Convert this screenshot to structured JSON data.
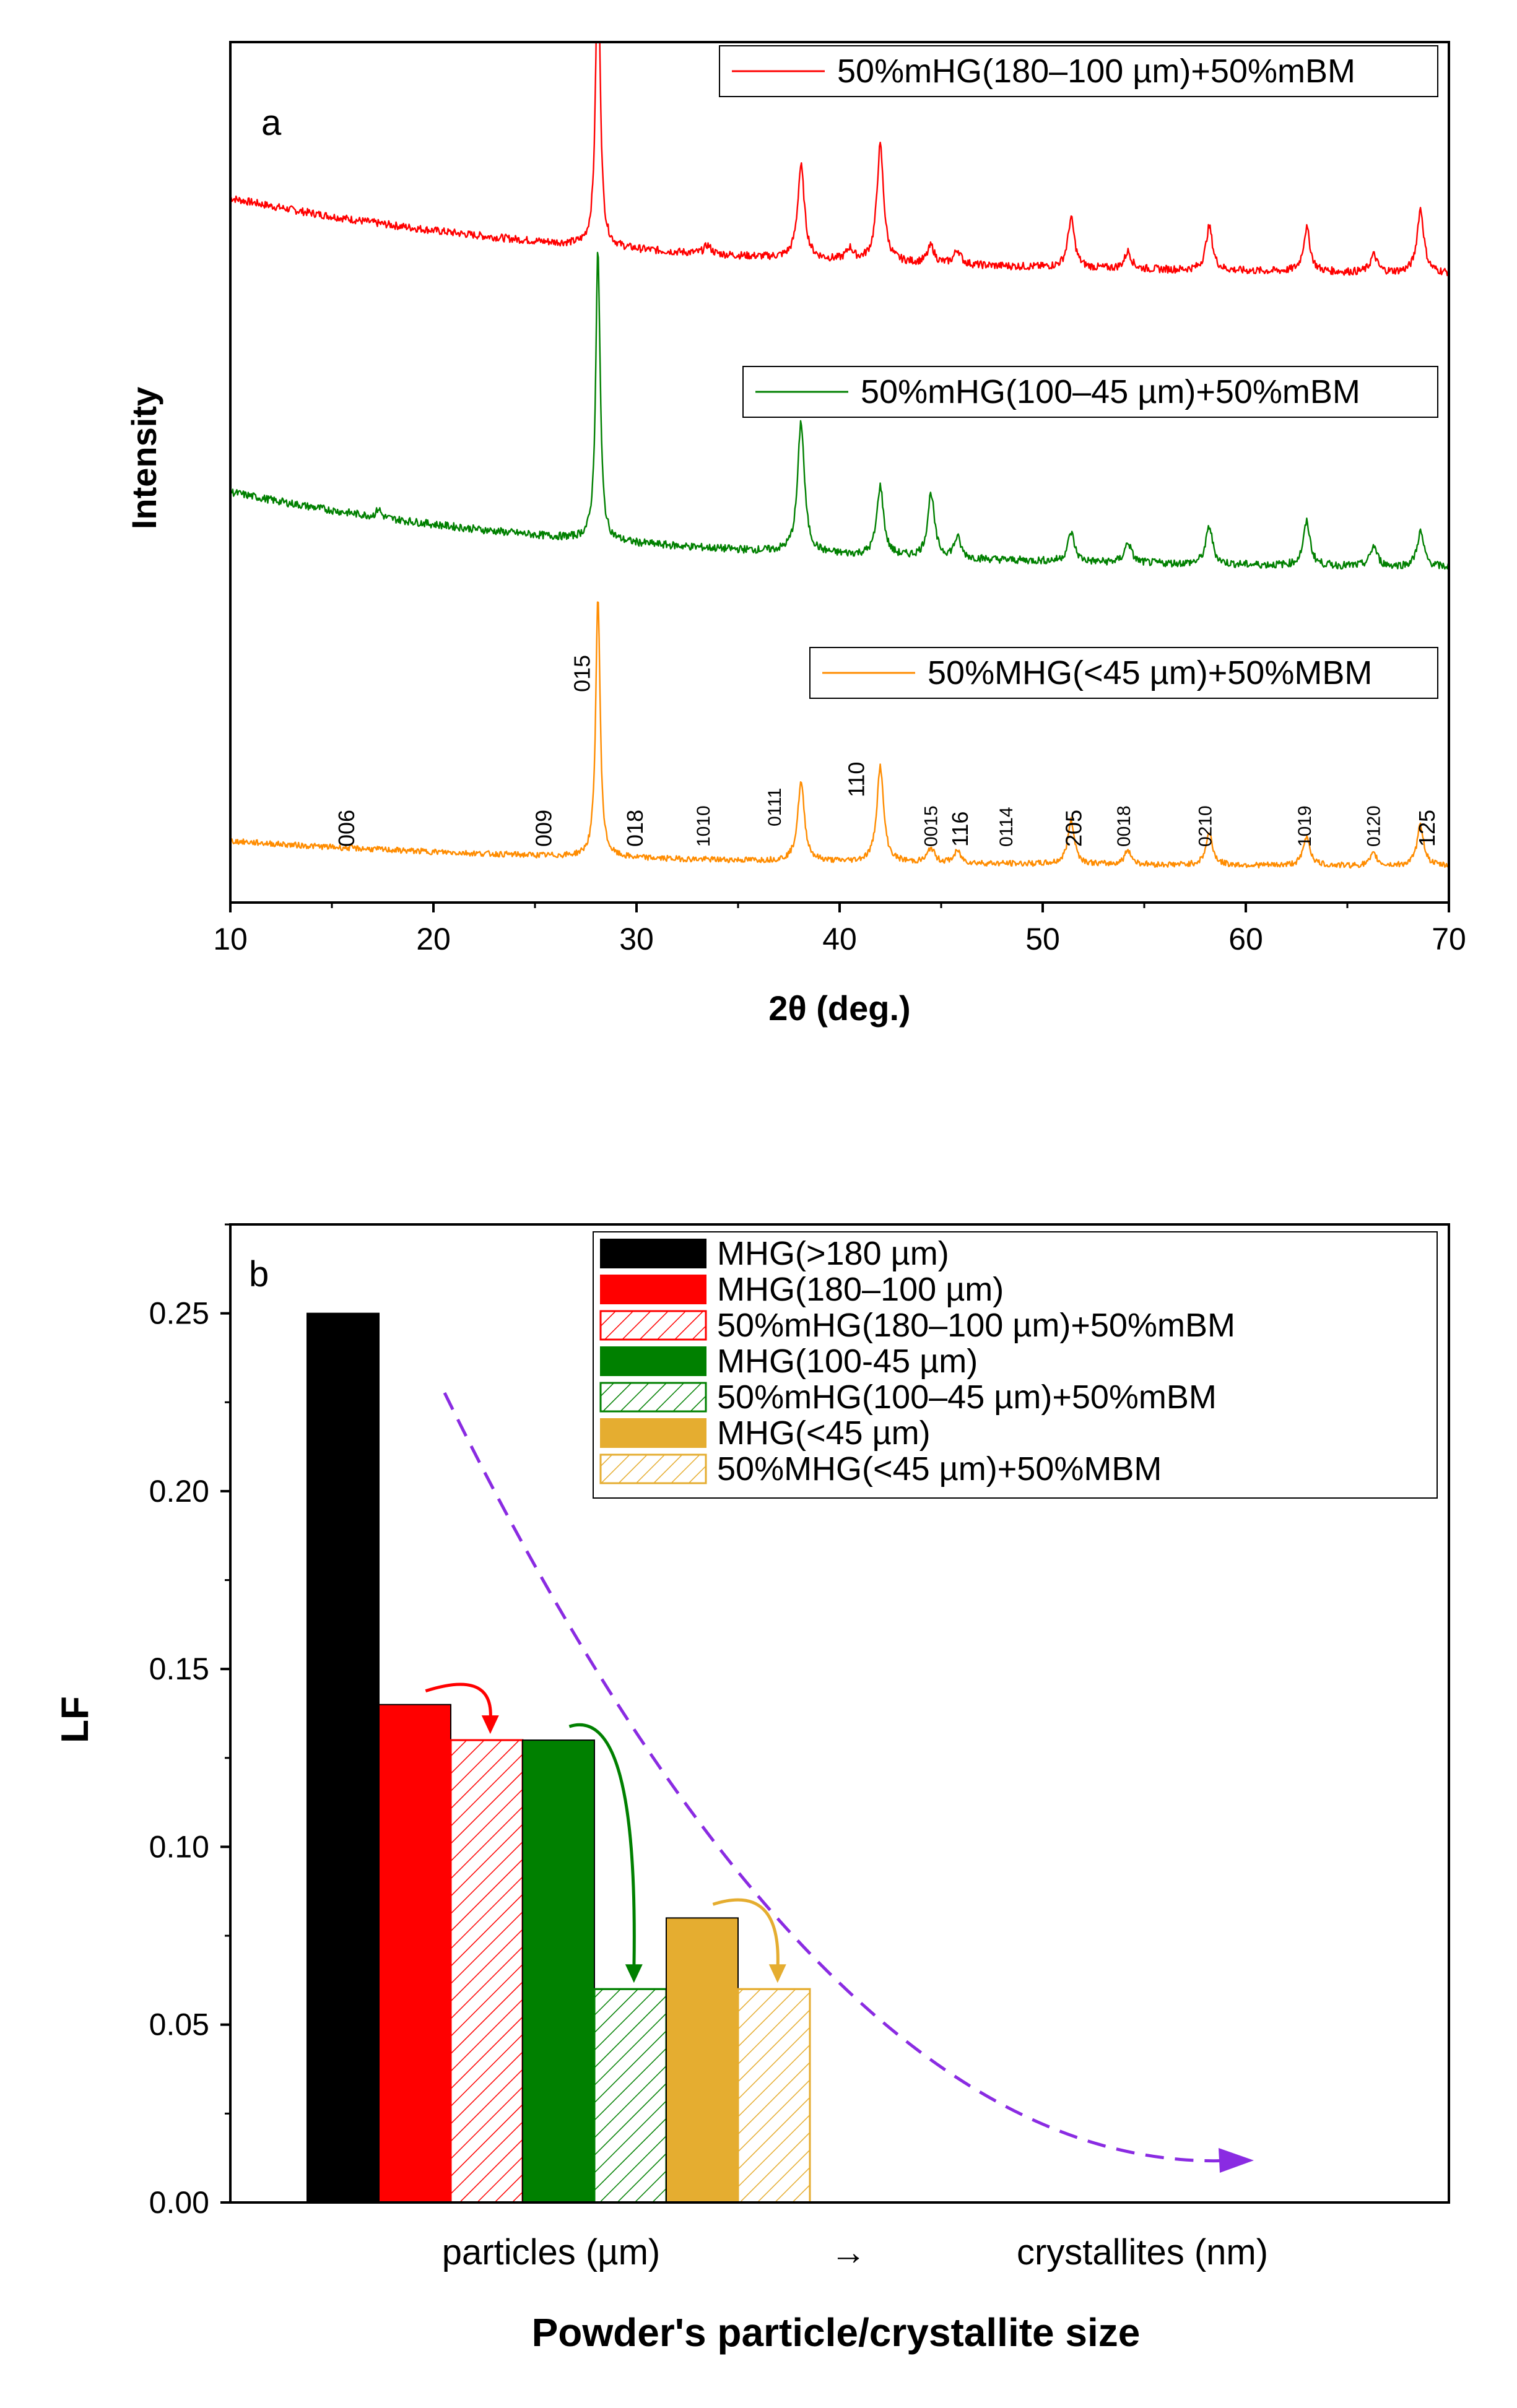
{
  "chart_data": [
    {
      "type": "line",
      "panel_label": "a",
      "title": "",
      "xlabel": "2θ (deg.)",
      "ylabel": "Intensity",
      "xlim": [
        10,
        70
      ],
      "x_ticks": [
        10,
        20,
        30,
        40,
        50,
        60,
        70
      ],
      "y_ticks": [],
      "legend_position": "top-right (one entry per curve)",
      "series": [
        {
          "name": "50%mHG(180–100 µm)+50%mBM",
          "color": "#ff0000",
          "offset": 2.0,
          "baseline_start": 0.33,
          "baseline_end": 0.06,
          "noise": 0.012,
          "peaks": [
            [
              28.1,
              1.05
            ],
            [
              38.1,
              0.32
            ],
            [
              42.0,
              0.4
            ],
            [
              44.5,
              0.06
            ],
            [
              45.8,
              0.05
            ],
            [
              51.4,
              0.17
            ],
            [
              54.2,
              0.06
            ],
            [
              58.2,
              0.15
            ],
            [
              63.0,
              0.15
            ],
            [
              66.3,
              0.06
            ],
            [
              68.6,
              0.22
            ],
            [
              33.5,
              0.03
            ],
            [
              40.5,
              0.04
            ]
          ]
        },
        {
          "name": "50%mHG(100–45 µm)+50%mBM",
          "color": "#008000",
          "offset": 1.0,
          "baseline_start": 0.32,
          "baseline_end": 0.05,
          "noise": 0.012,
          "peaks": [
            [
              28.1,
              1.0
            ],
            [
              38.1,
              0.45
            ],
            [
              42.0,
              0.24
            ],
            [
              44.5,
              0.22
            ],
            [
              45.8,
              0.07
            ],
            [
              51.4,
              0.1
            ],
            [
              54.2,
              0.07
            ],
            [
              58.2,
              0.13
            ],
            [
              63.0,
              0.15
            ],
            [
              66.3,
              0.07
            ],
            [
              68.6,
              0.12
            ],
            [
              17.3,
              0.03
            ]
          ]
        },
        {
          "name": "50%MHG(<45 µm)+50%MBM",
          "color": "#ff8c00",
          "offset": 0.0,
          "baseline_start": 0.12,
          "baseline_end": 0.03,
          "noise": 0.009,
          "peaks": [
            [
              28.1,
              0.9
            ],
            [
              38.1,
              0.27
            ],
            [
              42.0,
              0.33
            ],
            [
              44.5,
              0.05
            ],
            [
              45.8,
              0.04
            ],
            [
              51.4,
              0.15
            ],
            [
              54.2,
              0.05
            ],
            [
              58.2,
              0.11
            ],
            [
              63.0,
              0.1
            ],
            [
              66.3,
              0.04
            ],
            [
              68.6,
              0.14
            ]
          ]
        }
      ],
      "peak_labels": [
        {
          "x": 15.8,
          "label": "006"
        },
        {
          "x": 25.5,
          "label": "009"
        },
        {
          "x": 27.4,
          "label": "015"
        },
        {
          "x": 30.0,
          "label": "018"
        },
        {
          "x": 33.3,
          "label": "1010"
        },
        {
          "x": 36.8,
          "label": "0111"
        },
        {
          "x": 40.9,
          "label": "110"
        },
        {
          "x": 44.5,
          "label": "0015"
        },
        {
          "x": 46.0,
          "label": "116"
        },
        {
          "x": 48.2,
          "label": "0114"
        },
        {
          "x": 51.6,
          "label": "205"
        },
        {
          "x": 54.0,
          "label": "0018"
        },
        {
          "x": 58.0,
          "label": "0210"
        },
        {
          "x": 62.9,
          "label": "1019"
        },
        {
          "x": 66.3,
          "label": "0120"
        },
        {
          "x": 69.0,
          "label": "125"
        }
      ]
    },
    {
      "type": "bar",
      "panel_label": "b",
      "title": "",
      "xlabel": "Powder's particle/crystallite size",
      "ylabel": "LF",
      "ylim": [
        0,
        0.275
      ],
      "y_ticks": [
        "0.00",
        "0.05",
        "0.10",
        "0.15",
        "0.20",
        "0.25"
      ],
      "x_annotations": [
        "particles (µm)",
        "→",
        "crystallites (nm)"
      ],
      "legend_position": "top-right",
      "bars": [
        {
          "name": "MHG(>180 µm)",
          "value": 0.25,
          "color": "#000000",
          "hatched": false
        },
        {
          "name": "MHG(180–100 µm)",
          "value": 0.14,
          "color": "#ff0000",
          "hatched": false
        },
        {
          "name": "50%mHG(180–100 µm)+50%mBM",
          "value": 0.13,
          "color": "#ff0000",
          "hatched": true
        },
        {
          "name": "MHG(100-45 µm)",
          "value": 0.13,
          "color": "#008000",
          "hatched": false
        },
        {
          "name": "50%mHG(100–45 µm)+50%mBM",
          "value": 0.06,
          "color": "#008000",
          "hatched": true
        },
        {
          "name": "MHG(<45 µm)",
          "value": 0.08,
          "color": "#e5ad30",
          "hatched": false
        },
        {
          "name": "50%MHG(<45 µm)+50%MBM",
          "value": 0.06,
          "color": "#e5ad30",
          "hatched": true
        }
      ],
      "arrows": [
        {
          "from_bar": 1,
          "to_bar": 2,
          "color": "#ff0000"
        },
        {
          "from_bar": 3,
          "to_bar": 4,
          "color": "#008000"
        },
        {
          "from_bar": 5,
          "to_bar": 6,
          "color": "#e5ad30"
        }
      ],
      "trend_line": {
        "color": "#8a2be2",
        "style": "dashed",
        "direction": "decreasing"
      }
    }
  ]
}
